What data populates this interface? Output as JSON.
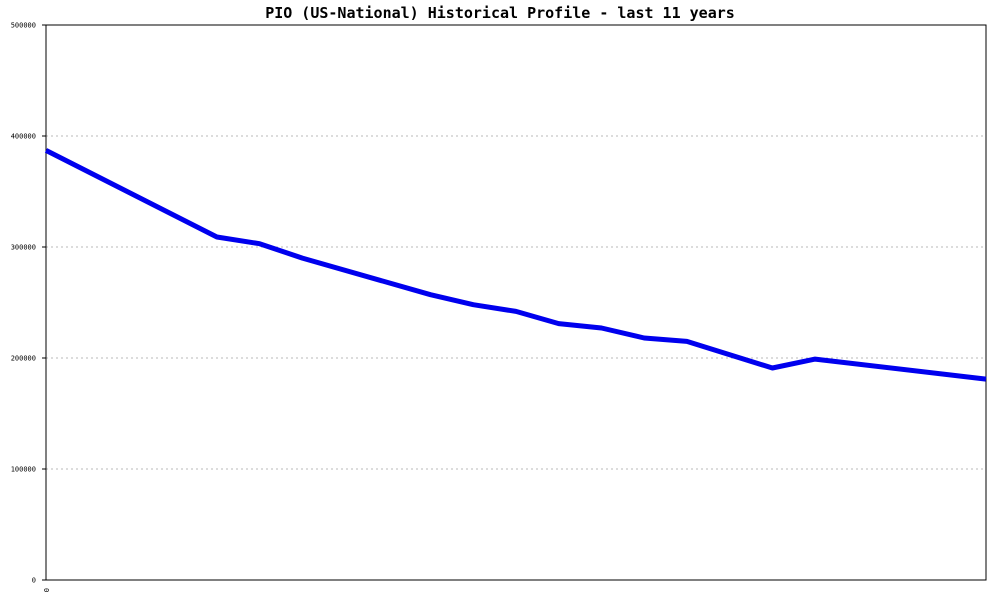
{
  "chart_data": {
    "type": "line",
    "title": "PIO (US-National) Historical Profile - last 11 years",
    "xlabel": "",
    "ylabel": "",
    "ylim": [
      0,
      500000
    ],
    "xlim": [
      0,
      22
    ],
    "yticks": [
      "0",
      "100000",
      "200000",
      "300000",
      "400000",
      "500000"
    ],
    "xticks": [
      "0"
    ],
    "grid": true,
    "color": "#0000ee",
    "series": [
      {
        "x": [
          0,
          4,
          5,
          6,
          8,
          9,
          10,
          11,
          12,
          13,
          14,
          15,
          17,
          18,
          22
        ],
        "values": [
          387000,
          309000,
          303000,
          290000,
          268000,
          257000,
          248000,
          242000,
          231000,
          227000,
          218000,
          215000,
          191000,
          199000,
          181000
        ]
      }
    ]
  }
}
